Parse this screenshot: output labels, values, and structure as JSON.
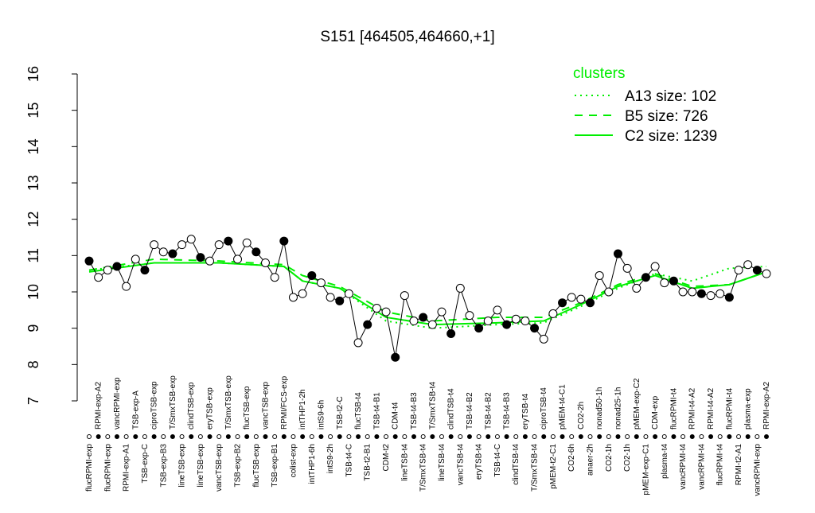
{
  "chart_data": {
    "type": "line",
    "title": "S151 [464505,464660,+1]",
    "ylim": [
      7,
      16
    ],
    "yticks": [
      7,
      8,
      9,
      10,
      11,
      12,
      13,
      14,
      15,
      16
    ],
    "categories": [
      "flucRPMI-exp",
      "RPMI-exp-A2",
      "flucRPMI-exp",
      "vancRPMI-exp",
      "RPMI-exp-A1",
      "TSB-exp-A",
      "TSB-exp-C",
      "ciproTSB-exp",
      "TSB-exp-B3",
      "T/SmxTSB-exp",
      "lineTSB-exp",
      "clindTSB-exp",
      "lineTSB-exp",
      "eryTSB-exp",
      "vancTSB-exp",
      "T/SmxTSB-exp",
      "TSB-exp-B2",
      "flucTSB-exp",
      "flucTSB-exp",
      "vancTSB-exp",
      "TSB-exp-B1",
      "RPMI/FCS-exp",
      "colist-exp",
      "intTHP1-2h",
      "intTHP1-6h",
      "intS9-6h",
      "intS9-2h",
      "TSB-t2-C",
      "TSB-t4-C",
      "flucTSB-t4",
      "TSB-t2-B1",
      "TSB-t4-B1",
      "CDM-t2",
      "CDM-t4",
      "lineTSB-t4",
      "TSB-t4-B3",
      "T/SmxTSB-t4",
      "T/SmxTSB-t4",
      "lineTSB-t4",
      "clindTSB-t4",
      "vancTSB-t4",
      "TSB-t4-B2",
      "eryTSB-t4",
      "TSB-t4-B2",
      "TSB-t4-C",
      "TSB-t4-B3",
      "clindTSB-t4",
      "eryTSB-t4",
      "T/SmxTSB-t4",
      "ciproTSB-t4",
      "pMEM-t2-C1",
      "pMEM-t4-C1",
      "CO2-6h",
      "CO2-2h",
      "anaer-2h",
      "nonad50-1h",
      "CO2-1h",
      "nonad25-1h",
      "CO2-1h",
      "pMEM-exp-C2",
      "pMEM-exp-C1",
      "CDM-exp",
      "plasma-t4",
      "flucRPMI-t4",
      "vancRPMI-t4",
      "RPMI-t4-A2",
      "vancRPMI-t4",
      "RPMI-t4-A2",
      "flucRPMI-t4",
      "flucRPMI-t4",
      "RPMI-t2-A1",
      "plasma-exp",
      "vancRPMI-exp",
      "RPMI-exp-A2"
    ],
    "values": [
      10.85,
      10.4,
      10.6,
      10.7,
      10.15,
      10.9,
      10.6,
      11.3,
      11.1,
      11.05,
      11.3,
      11.45,
      10.95,
      10.85,
      11.3,
      11.4,
      10.9,
      11.35,
      11.1,
      10.8,
      10.4,
      11.4,
      9.85,
      9.95,
      10.45,
      10.25,
      9.85,
      9.75,
      9.95,
      8.6,
      9.1,
      9.55,
      9.45,
      8.2,
      9.9,
      9.2,
      9.3,
      9.1,
      9.45,
      8.85,
      10.1,
      9.35,
      9.0,
      9.2,
      9.5,
      9.1,
      9.25,
      9.2,
      9.0,
      8.7,
      9.4,
      9.7,
      9.85,
      9.8,
      9.7,
      10.45,
      10.0,
      11.05,
      10.65,
      10.1,
      10.4,
      10.7,
      10.25,
      10.3,
      10.0,
      10.0,
      9.95,
      9.9,
      9.95,
      9.85,
      10.6,
      10.75,
      10.6,
      10.5
    ],
    "legend_title": "clusters",
    "series": [
      {
        "name": "A13 size: 102",
        "color": "#00ee00",
        "dash": "dotted",
        "x": [
          1,
          8,
          15,
          22,
          24,
          28,
          33,
          38,
          45,
          50,
          54,
          58,
          62,
          66,
          70,
          74
        ],
        "values": [
          10.6,
          10.8,
          10.8,
          10.7,
          10.3,
          10.1,
          9.2,
          9.0,
          9.1,
          9.15,
          9.6,
          10.1,
          10.5,
          10.3,
          10.65,
          10.7
        ]
      },
      {
        "name": "B5 size: 726",
        "color": "#00ee00",
        "dash": "dashed",
        "x": [
          1,
          8,
          15,
          22,
          24,
          28,
          33,
          38,
          45,
          50,
          54,
          58,
          62,
          66,
          70,
          74
        ],
        "values": [
          10.6,
          10.9,
          10.85,
          10.75,
          10.45,
          10.15,
          9.45,
          9.2,
          9.3,
          9.3,
          9.7,
          10.2,
          10.5,
          10.15,
          10.2,
          10.55
        ]
      },
      {
        "name": "C2 size: 1239",
        "color": "#00ee00",
        "dash": "solid",
        "x": [
          1,
          8,
          15,
          22,
          24,
          28,
          33,
          38,
          45,
          50,
          54,
          58,
          62,
          66,
          70,
          74
        ],
        "values": [
          10.55,
          10.8,
          10.8,
          10.7,
          10.3,
          10.1,
          9.3,
          9.1,
          9.15,
          9.2,
          9.65,
          10.15,
          10.45,
          10.1,
          10.2,
          10.55
        ]
      }
    ]
  }
}
